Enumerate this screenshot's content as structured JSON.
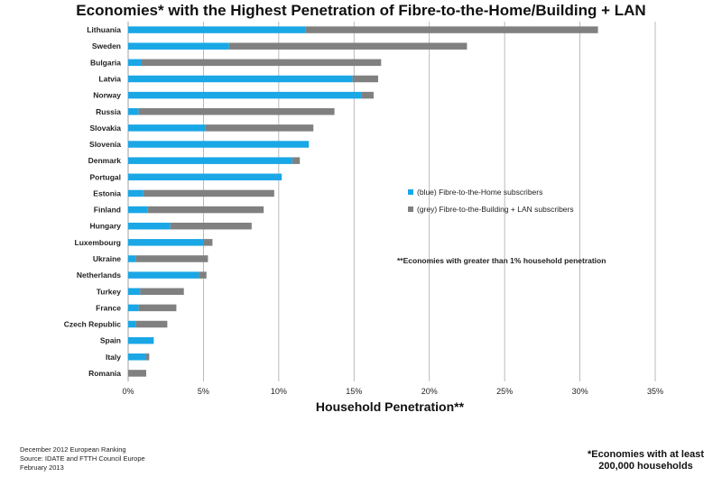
{
  "footer": {
    "lines": [
      "December 2012 European Ranking",
      "Source: IDATE and FTTH Council Europe",
      "February 2013"
    ],
    "note_lines": [
      "*Economies with at least",
      "200,000 households"
    ]
  },
  "colors": {
    "ftth": "#1aa7e6",
    "fttb_lan": "#808080",
    "grid": "#aaaaaa"
  },
  "chart_data": {
    "type": "bar",
    "orientation": "horizontal",
    "stacked": true,
    "title": "Economies* with the Highest Penetration of Fibre-to-the-Home/Building + LAN",
    "xlabel": "Household Penetration**",
    "ylabel": "",
    "xlim": [
      0,
      35
    ],
    "xticks": [
      0,
      5,
      10,
      15,
      20,
      25,
      30,
      35
    ],
    "xtick_labels": [
      "0%",
      "5%",
      "10%",
      "15%",
      "20%",
      "25%",
      "30%",
      "35%"
    ],
    "grid": true,
    "legend_position": "right-middle",
    "categories": [
      "Lithuania",
      "Sweden",
      "Bulgaria",
      "Latvia",
      "Norway",
      "Russia",
      "Slovakia",
      "Slovenia",
      "Denmark",
      "Portugal",
      "Estonia",
      "Finland",
      "Hungary",
      "Luxembourg",
      "Ukraine",
      "Netherlands",
      "Turkey",
      "France",
      "Czech Republic",
      "Spain",
      "Italy",
      "Romania"
    ],
    "series": [
      {
        "name": "(blue) Fibre-to-the-Home subscribers",
        "color": "#1aa7e6",
        "values": [
          11.8,
          6.7,
          0.9,
          14.9,
          15.5,
          0.7,
          5.1,
          12.0,
          10.9,
          10.2,
          1.0,
          1.3,
          2.8,
          5.0,
          0.5,
          4.7,
          0.8,
          0.7,
          0.5,
          1.7,
          1.2,
          0.0
        ]
      },
      {
        "name": "(grey) Fibre-to-the-Building + LAN subscribers",
        "color": "#808080",
        "values": [
          19.4,
          15.8,
          15.9,
          1.7,
          0.8,
          13.0,
          7.2,
          0.0,
          0.5,
          0.0,
          8.7,
          7.7,
          5.4,
          0.6,
          4.8,
          0.5,
          2.9,
          2.5,
          2.1,
          0.0,
          0.2,
          1.2
        ]
      }
    ],
    "annotations": [
      "**Economies with greater than 1% household penetration"
    ]
  }
}
